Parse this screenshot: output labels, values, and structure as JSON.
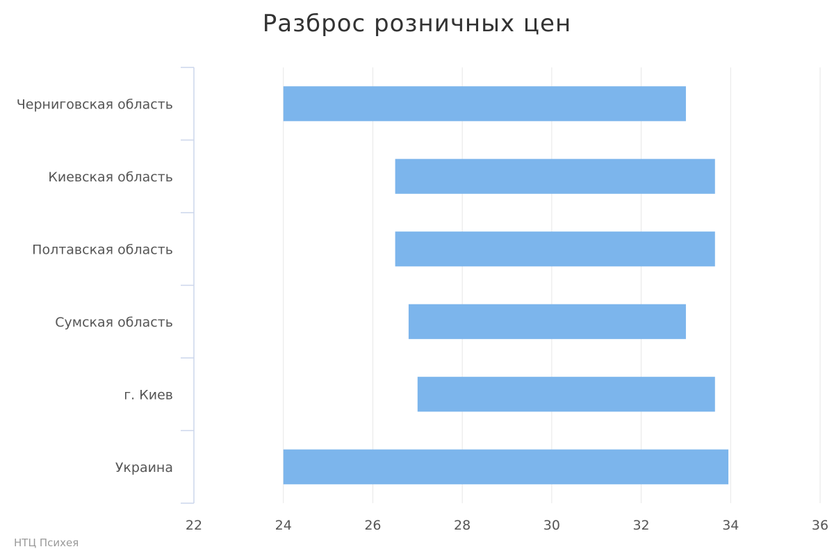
{
  "chart_data": {
    "type": "bar",
    "orientation": "horizontal",
    "title": "Разброс розничных цен",
    "categories": [
      "Черниговская область",
      "Киевская область",
      "Полтавская область",
      "Сумская область",
      "г. Киев",
      "Украина"
    ],
    "series": [
      {
        "ranges": [
          [
            24.0,
            33.0
          ],
          [
            26.5,
            33.65
          ],
          [
            26.5,
            33.65
          ],
          [
            26.8,
            33.0
          ],
          [
            27.0,
            33.65
          ],
          [
            24.0,
            33.95
          ]
        ]
      }
    ],
    "xlim": [
      22,
      36
    ],
    "x_ticks": [
      22,
      24,
      26,
      28,
      30,
      32,
      34,
      36
    ],
    "xlabel": "",
    "ylabel": "",
    "grid": true,
    "colors": {
      "bar": "#7cb5ec",
      "grid": "#e6e6e6",
      "axis": "#ccd6eb"
    }
  },
  "credits": "НТЦ Психея"
}
